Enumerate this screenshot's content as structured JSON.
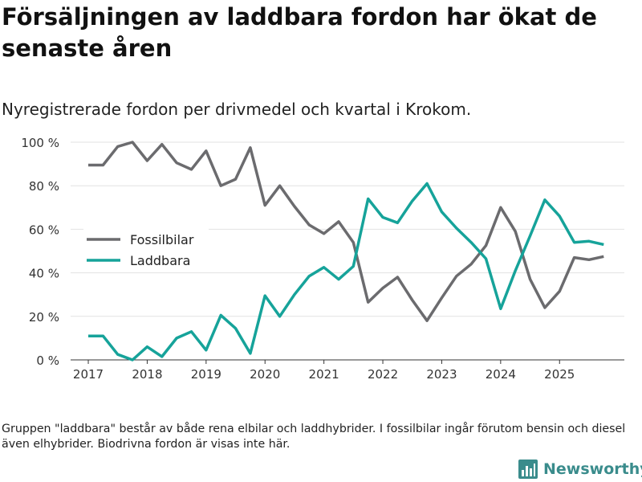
{
  "title": "Försäljningen av laddbara fordon har ökat de senaste åren",
  "subtitle": "Nyregistrerade fordon per drivmedel och kvartal i Krokom.",
  "footnote": "Gruppen \"laddbara\" består av både rena elbilar och laddhybrider. I fossilbilar ingår förutom bensin och diesel även elhybrider. Biodrivna fordon är visas inte här.",
  "brand": {
    "name": "Newsworthy",
    "icon": "newsworthy-logo-icon",
    "color": "#3a8c8c"
  },
  "chart_data": {
    "type": "line",
    "title": "Försäljningen av laddbara fordon har ökat de senaste åren",
    "xlabel": "",
    "ylabel": "",
    "ylim": [
      0,
      100
    ],
    "yticks": [
      0,
      20,
      40,
      60,
      80,
      100
    ],
    "ytick_labels": [
      "0 %",
      "20 %",
      "40 %",
      "60 %",
      "80 %",
      "100 %"
    ],
    "xlim": [
      2016.7,
      2026.1
    ],
    "xticks": [
      2017,
      2018,
      2019,
      2020,
      2021,
      2022,
      2023,
      2024,
      2025
    ],
    "xtick_labels": [
      "2017",
      "2018",
      "2019",
      "2020",
      "2021",
      "2022",
      "2023",
      "2024",
      "2025"
    ],
    "grid": "horizontal",
    "legend_position": "left-middle",
    "x": [
      2017.0,
      2017.25,
      2017.5,
      2017.75,
      2018.0,
      2018.25,
      2018.5,
      2018.75,
      2019.0,
      2019.25,
      2019.5,
      2019.75,
      2020.0,
      2020.25,
      2020.5,
      2020.75,
      2021.0,
      2021.25,
      2021.5,
      2021.75,
      2022.0,
      2022.25,
      2022.5,
      2022.75,
      2023.0,
      2023.25,
      2023.5,
      2023.75,
      2024.0,
      2024.25,
      2024.5,
      2024.75,
      2025.0,
      2025.25,
      2025.5,
      2025.75
    ],
    "series": [
      {
        "name": "Fossilbilar",
        "color": "#6b6b6e",
        "values": [
          89.5,
          89.5,
          98,
          100,
          91.5,
          99,
          90.5,
          87.5,
          96,
          80,
          83,
          97.5,
          71,
          80,
          70.5,
          62,
          58,
          63.5,
          54,
          26.5,
          33,
          38,
          27.5,
          18,
          28.5,
          38.5,
          44,
          52.5,
          70,
          59,
          37,
          24,
          31.5,
          47,
          46,
          47.5
        ]
      },
      {
        "name": "Laddbara",
        "color": "#16a39a",
        "values": [
          11,
          11,
          2.5,
          0,
          6,
          1.5,
          10,
          13,
          4.5,
          20.5,
          14.5,
          3,
          29.5,
          20,
          30,
          38.5,
          42.5,
          37,
          43,
          74,
          65.5,
          63,
          73,
          81,
          68,
          60.5,
          54,
          46.5,
          23.5,
          41,
          57,
          73.5,
          66,
          54,
          54.5,
          53
        ]
      }
    ]
  }
}
